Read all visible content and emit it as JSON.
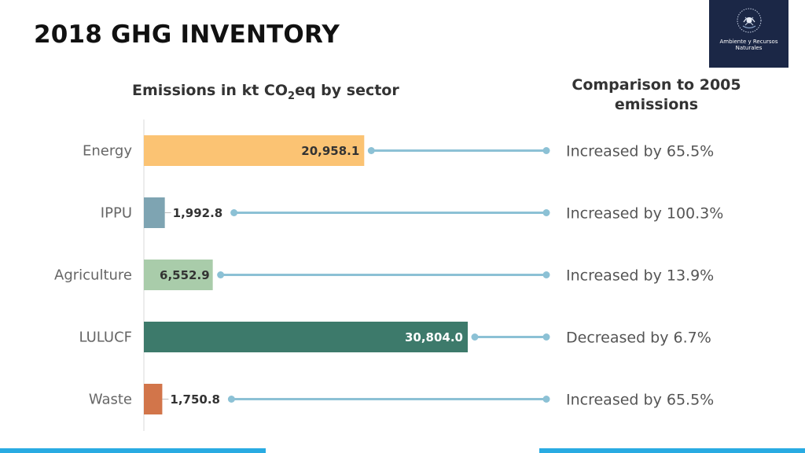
{
  "page": {
    "title": "2018 GHG INVENTORY",
    "left_heading": {
      "prefix": "Emissions in kt CO",
      "sub": "2",
      "suffix": "eq by sector"
    },
    "right_heading": "Comparison to 2005 emissions",
    "logo_text": "Ambiente y Recursos Naturales"
  },
  "chart_data": {
    "type": "bar",
    "orientation": "horizontal",
    "title": "Emissions in kt CO2eq by sector",
    "categories": [
      "Energy",
      "IPPU",
      "Agriculture",
      "LULUCF",
      "Waste"
    ],
    "values": [
      20958.1,
      1992.8,
      6552.9,
      30804.0,
      1750.8
    ],
    "value_labels": [
      "20,958.1",
      "1,992.8",
      "6,552.9",
      "30,804.0",
      "1,750.8"
    ],
    "colors": [
      "#fbc373",
      "#7ea4b2",
      "#a9ccaa",
      "#3d7a6b",
      "#d2754a"
    ],
    "comparison_title": "Comparison to 2005 emissions",
    "comparisons": [
      "Increased by 65.5%",
      "Increased by 100.3%",
      "Increased by 13.9%",
      "Decreased by 6.7%",
      "Increased by 65.5%"
    ],
    "connector_color": "#8cc1d5",
    "xlim": [
      0,
      30804.0
    ],
    "grid": false
  }
}
